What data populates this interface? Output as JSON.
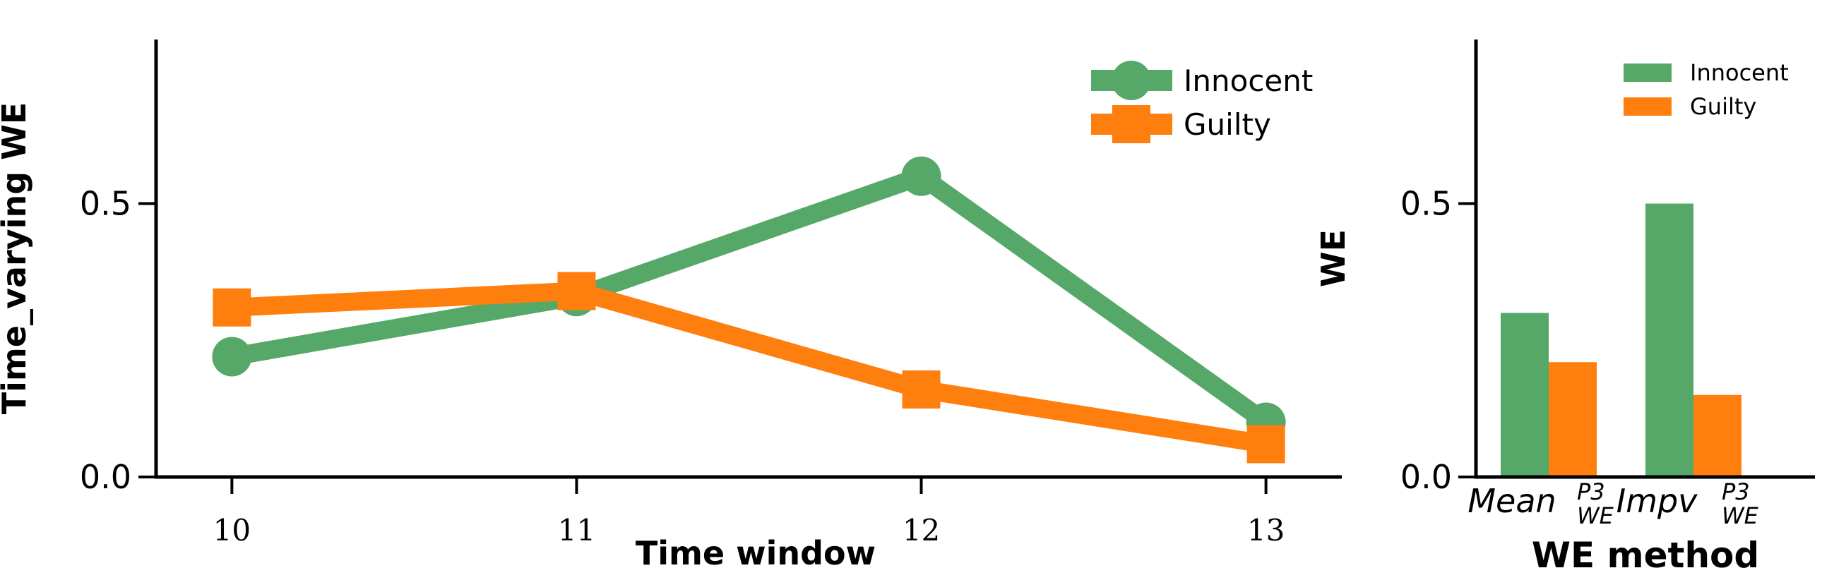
{
  "chart_data": [
    {
      "type": "line",
      "title": "",
      "xlabel": "Time window",
      "ylabel": "Time_varying WE",
      "x": [
        10,
        11,
        12,
        13
      ],
      "x_tick_labels": [
        "10",
        "11",
        "12",
        "13"
      ],
      "y_ticks": [
        0.0,
        0.5
      ],
      "y_tick_labels": [
        "0.0",
        "0.5"
      ],
      "xlim": [
        9.78,
        13.22
      ],
      "ylim": [
        0,
        0.8
      ],
      "grid": false,
      "legend_placement": "top-right",
      "series": [
        {
          "name": "Innocent",
          "values": [
            0.22,
            0.33,
            0.55,
            0.1
          ],
          "color": "#55a868",
          "marker": "circle"
        },
        {
          "name": "Guilty",
          "values": [
            0.31,
            0.34,
            0.16,
            0.06
          ],
          "color": "#ff7f0e",
          "marker": "square"
        }
      ]
    },
    {
      "type": "bar",
      "title": "",
      "xlabel": "WE method",
      "ylabel": "WE",
      "categories": [
        {
          "base": "Mean",
          "sup": "P3",
          "sub": "WE"
        },
        {
          "base": "Impv",
          "sup": "P3",
          "sub": "WE"
        }
      ],
      "y_ticks": [
        0.0,
        0.5
      ],
      "y_tick_labels": [
        "0.0",
        "0.5"
      ],
      "ylim": [
        0,
        0.8
      ],
      "grid": false,
      "legend_placement": "top-right",
      "series": [
        {
          "name": "Innocent",
          "values": [
            0.3,
            0.5
          ],
          "color": "#55a868"
        },
        {
          "name": "Guilty",
          "values": [
            0.21,
            0.15
          ],
          "color": "#ff7f0e"
        }
      ]
    }
  ]
}
